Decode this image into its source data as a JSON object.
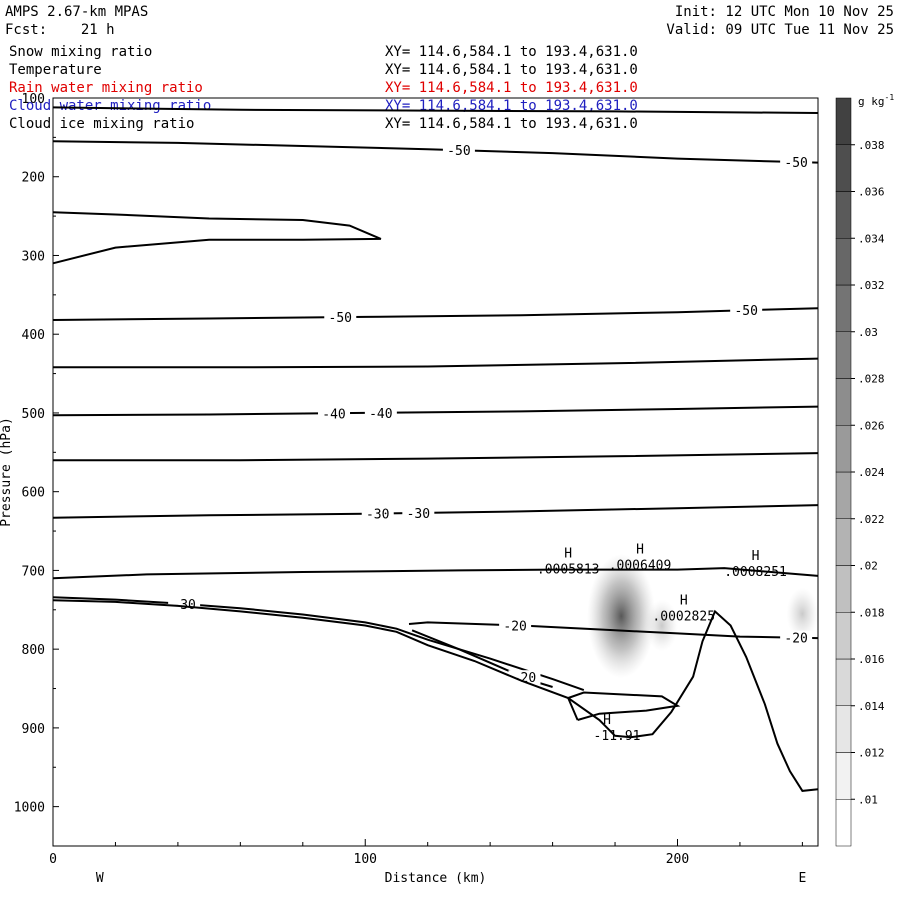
{
  "header": {
    "model": "AMPS 2.67-km MPAS",
    "fcst": "Fcst:    21 h",
    "init": "Init: 12 UTC Mon 10 Nov 25",
    "valid": "Valid: 09 UTC Tue 11 Nov 25"
  },
  "fields": [
    {
      "name": "Snow mixing ratio",
      "xy": "XY= 114.6,584.1 to 193.4,631.0",
      "color": "#000000"
    },
    {
      "name": "Temperature",
      "xy": "XY= 114.6,584.1 to 193.4,631.0",
      "color": "#000000"
    },
    {
      "name": "Rain water mixing ratio",
      "xy": "XY= 114.6,584.1 to 193.4,631.0",
      "color": "#e00000"
    },
    {
      "name": "Cloud water mixing ratio",
      "xy": "XY= 114.6,584.1 to 193.4,631.0",
      "color": "#2020c0"
    },
    {
      "name": "Cloud ice mixing ratio",
      "xy": "XY= 114.6,584.1 to 193.4,631.0",
      "color": "#000000"
    }
  ],
  "chart_data": {
    "type": "contour cross-section",
    "xlabel": "Distance (km)",
    "ylabel": "Pressure (hPa)",
    "xlim": [
      0,
      245
    ],
    "ylim": [
      1050,
      100
    ],
    "x_ticks": [
      0,
      100,
      200
    ],
    "y_ticks": [
      100,
      200,
      300,
      400,
      500,
      600,
      700,
      800,
      900,
      1000
    ],
    "direction_labels": {
      "left": "W",
      "right": "E"
    },
    "colorbar": {
      "unit": "g kg",
      "unit_exponent": "-1",
      "levels": [
        ".01",
        ".012",
        ".014",
        ".016",
        ".018",
        ".02",
        ".022",
        ".024",
        ".026",
        ".028",
        ".03",
        ".032",
        ".034",
        ".036",
        ".038"
      ]
    },
    "temperature_contours": [
      {
        "label": "-50",
        "points": [
          [
            0,
            112
          ],
          [
            60,
            115
          ],
          [
            120,
            116
          ],
          [
            180,
            117
          ],
          [
            245,
            119
          ]
        ]
      },
      {
        "label": "-50",
        "label_x": 130,
        "label2_x": 238,
        "points": [
          [
            0,
            155
          ],
          [
            40,
            157
          ],
          [
            80,
            161
          ],
          [
            120,
            165
          ],
          [
            160,
            170
          ],
          [
            200,
            177
          ],
          [
            235,
            181
          ],
          [
            245,
            182
          ]
        ]
      },
      {
        "label": "-50",
        "label_x": 92,
        "label2_x": 222,
        "points": [
          [
            0,
            382
          ],
          [
            50,
            380
          ],
          [
            100,
            378
          ],
          [
            150,
            376
          ],
          [
            200,
            372
          ],
          [
            245,
            367
          ]
        ]
      },
      {
        "label": "",
        "points": [
          [
            0,
            442
          ],
          [
            60,
            442
          ],
          [
            120,
            441
          ],
          [
            180,
            437
          ],
          [
            245,
            431
          ]
        ]
      },
      {
        "label": "-40",
        "label_x": 90,
        "label2_x": 105,
        "points": [
          [
            0,
            503
          ],
          [
            50,
            502
          ],
          [
            100,
            500
          ],
          [
            150,
            498
          ],
          [
            200,
            495
          ],
          [
            245,
            492
          ]
        ]
      },
      {
        "label": "",
        "points": [
          [
            0,
            560
          ],
          [
            60,
            560
          ],
          [
            120,
            558
          ],
          [
            180,
            555
          ],
          [
            245,
            551
          ]
        ]
      },
      {
        "label": "-30",
        "label_x": 104,
        "label2_x": 117,
        "points": [
          [
            0,
            633
          ],
          [
            50,
            630
          ],
          [
            100,
            628
          ],
          [
            150,
            625
          ],
          [
            200,
            621
          ],
          [
            245,
            617
          ]
        ]
      },
      {
        "label": "",
        "points": [
          [
            0,
            710
          ],
          [
            30,
            705
          ],
          [
            80,
            702
          ],
          [
            130,
            700
          ],
          [
            160,
            699
          ],
          [
            200,
            699
          ],
          [
            215,
            697
          ],
          [
            230,
            702
          ],
          [
            245,
            707
          ]
        ]
      },
      {
        "label": "-20",
        "label_x": 148,
        "label2_x": 238,
        "points": [
          [
            114,
            768
          ],
          [
            120,
            766
          ],
          [
            150,
            770
          ],
          [
            180,
            776
          ],
          [
            200,
            780
          ],
          [
            220,
            784
          ],
          [
            245,
            786
          ]
        ]
      },
      {
        "label": "-30",
        "label_x": 42,
        "points": [
          [
            0,
            734
          ],
          [
            20,
            737
          ],
          [
            40,
            742
          ],
          [
            60,
            748
          ],
          [
            80,
            756
          ],
          [
            100,
            766
          ],
          [
            110,
            774
          ],
          [
            120,
            788
          ],
          [
            140,
            812
          ],
          [
            160,
            838
          ],
          [
            170,
            852
          ]
        ]
      },
      {
        "label": "-20",
        "label_x": 151,
        "points": [
          [
            115,
            776
          ],
          [
            130,
            800
          ],
          [
            145,
            826
          ],
          [
            155,
            842
          ],
          [
            160,
            848
          ]
        ]
      },
      {
        "label": "",
        "points": [
          [
            168,
            890
          ],
          [
            175,
            882
          ],
          [
            190,
            878
          ],
          [
            200,
            872
          ],
          [
            195,
            860
          ],
          [
            170,
            855
          ],
          [
            165,
            862
          ],
          [
            168,
            890
          ]
        ]
      }
    ],
    "upper_lobe": [
      [
        0,
        245
      ],
      [
        20,
        248
      ],
      [
        50,
        253
      ],
      [
        80,
        255
      ],
      [
        95,
        262
      ],
      [
        105,
        279
      ],
      [
        80,
        280
      ],
      [
        50,
        280
      ],
      [
        20,
        290
      ],
      [
        0,
        310
      ]
    ],
    "terrain_surface": [
      [
        0,
        738
      ],
      [
        20,
        740
      ],
      [
        40,
        745
      ],
      [
        60,
        752
      ],
      [
        80,
        760
      ],
      [
        100,
        770
      ],
      [
        110,
        778
      ],
      [
        120,
        795
      ],
      [
        135,
        815
      ],
      [
        150,
        840
      ],
      [
        165,
        862
      ],
      [
        175,
        890
      ],
      [
        180,
        910
      ],
      [
        185,
        912
      ],
      [
        192,
        908
      ],
      [
        198,
        880
      ],
      [
        205,
        835
      ],
      [
        208,
        790
      ],
      [
        212,
        752
      ],
      [
        217,
        770
      ],
      [
        222,
        810
      ],
      [
        228,
        870
      ],
      [
        232,
        920
      ],
      [
        236,
        955
      ],
      [
        240,
        980
      ],
      [
        245,
        978
      ]
    ],
    "maxima": [
      {
        "x": 165,
        "p": 695,
        "value": ".0005813"
      },
      {
        "x": 188,
        "p": 690,
        "value": ".0006409"
      },
      {
        "x": 202,
        "p": 755,
        "value": ".0002825"
      },
      {
        "x": 225,
        "p": 698,
        "value": ".0008251"
      }
    ],
    "surface_label": {
      "x": 180,
      "p": 910,
      "value": "-11.91"
    },
    "snow_shading": [
      {
        "x": 182,
        "p": 758,
        "intensity": 0.038
      },
      {
        "x": 195,
        "p": 770,
        "intensity": 0.012
      },
      {
        "x": 240,
        "p": 755,
        "intensity": 0.012
      }
    ]
  }
}
